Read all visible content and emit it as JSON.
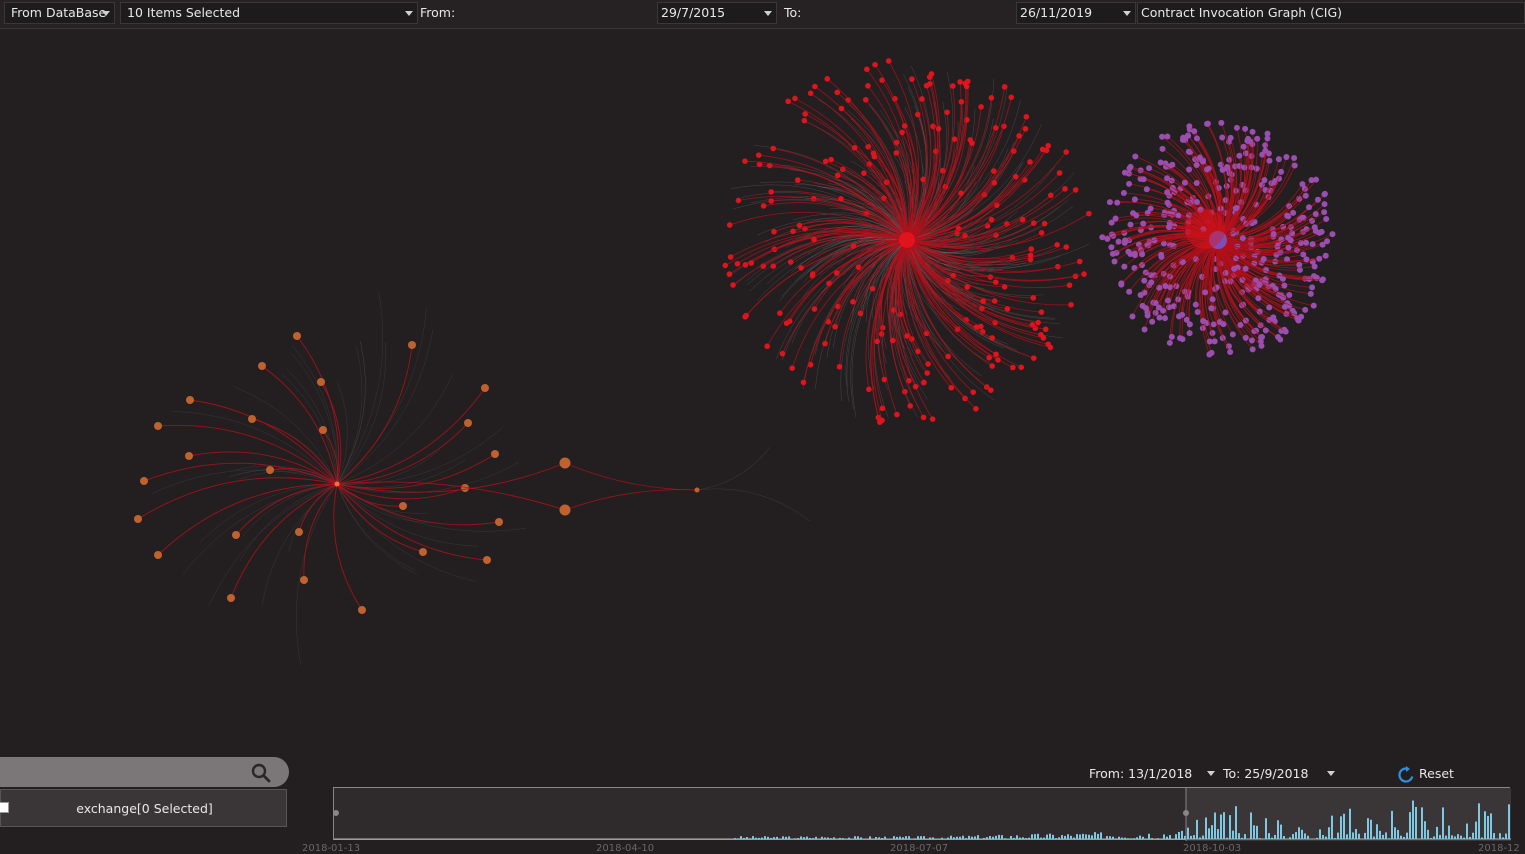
{
  "toolbar": {
    "source": "From DataBase",
    "items": "10 Items Selected",
    "from_label": "From:",
    "from_date": "29/7/2015",
    "to_label": "To:",
    "to_date": "26/11/2019",
    "graph_type": "Contract Invocation Graph (CIG)"
  },
  "filter": {
    "item_label": "exchange[0 Selected]"
  },
  "timeline": {
    "from_label": "From: 13/1/2018",
    "to_label": "To: 25/9/2018",
    "reset_label": "Reset",
    "axis_ticks": [
      "2018-01-13",
      "2018-04-10",
      "2018-07-07",
      "2018-10-03",
      "2018-12"
    ]
  },
  "colors": {
    "background": "#231f20",
    "cluster_red": "#e0141c",
    "cluster_purple": "#9a4fb0",
    "cluster_orange": "#c0622f",
    "edge_red": "#b3101a",
    "timeline_bar": "#7ec8e3"
  },
  "icons": {
    "search": "search-icon",
    "reset": "refresh-icon",
    "dropdown": "chevron-down-icon"
  }
}
